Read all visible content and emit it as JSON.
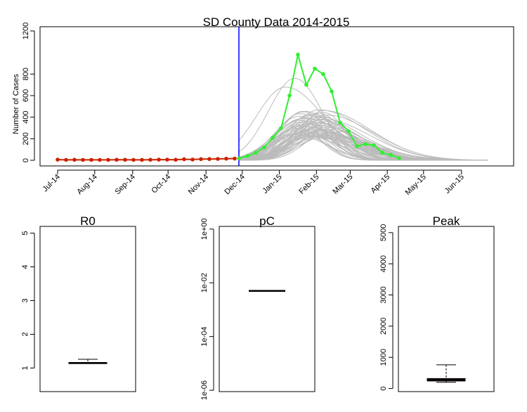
{
  "chart_data": [
    {
      "type": "line",
      "title": "SD County Data 2014-2015",
      "ylabel": "Number of Cases",
      "xlabel": "",
      "ylim": [
        0,
        1200
      ],
      "yticks": [
        0,
        200,
        400,
        600,
        800,
        1200
      ],
      "xlim": [
        -1,
        52
      ],
      "xticks": [
        {
          "x": 0,
          "label": "Jul-14"
        },
        {
          "x": 4.4,
          "label": "Aug-14"
        },
        {
          "x": 8.9,
          "label": "Sep-14"
        },
        {
          "x": 13.1,
          "label": "Oct-14"
        },
        {
          "x": 17.6,
          "label": "Nov-14"
        },
        {
          "x": 21.9,
          "label": "Dec-14"
        },
        {
          "x": 26.3,
          "label": "Jan-15"
        },
        {
          "x": 30.7,
          "label": "Feb-15"
        },
        {
          "x": 34.7,
          "label": "Mar-15"
        },
        {
          "x": 39.1,
          "label": "Apr-15"
        },
        {
          "x": 43.4,
          "label": "May-15"
        },
        {
          "x": 47.9,
          "label": "Jun-15"
        }
      ],
      "vline_x": 21.5,
      "vline_color": "#0000ff",
      "series": [
        {
          "color": "#cc2200",
          "x": [
            0,
            1,
            2,
            3,
            4,
            5,
            6,
            7,
            8,
            9,
            10,
            11,
            12,
            13,
            14,
            15,
            16,
            17,
            18,
            19,
            20,
            21
          ],
          "values": [
            6,
            4,
            5,
            4,
            4,
            4,
            4,
            5,
            5,
            4,
            4,
            5,
            6,
            6,
            5,
            10,
            7,
            11,
            12,
            13,
            15,
            16
          ]
        },
        {
          "color": "#33ee33",
          "x": [
            21.5,
            22.5,
            23.5,
            24.5,
            25.5,
            26.5,
            27.5,
            28.5,
            29.5,
            30.5,
            31.5,
            32.5,
            33.5,
            34.5,
            35.5,
            36.5,
            37.5,
            38.5,
            39.5,
            40.5
          ],
          "values": [
            18,
            40,
            70,
            120,
            210,
            300,
            600,
            980,
            700,
            850,
            800,
            640,
            350,
            270,
            130,
            150,
            140,
            70,
            50,
            20
          ]
        }
      ],
      "simulations_color": "#bbbbbb"
    },
    {
      "type": "boxplot",
      "title": "R0",
      "ylim": [
        0.3,
        5.2
      ],
      "yticks": [
        1,
        2,
        3,
        4,
        5
      ],
      "box": {
        "min": 1.12,
        "q1": 1.13,
        "median": 1.15,
        "q3": 1.16,
        "max": 1.26
      }
    },
    {
      "type": "boxplot",
      "title": "pC",
      "scale": "log",
      "ylim_exp": [
        -6.05,
        0.1
      ],
      "yticks": [
        {
          "exp": 0,
          "label": "1e+00"
        },
        {
          "exp": -2,
          "label": "1e-02"
        },
        {
          "exp": -4,
          "label": "1e-04"
        },
        {
          "exp": -6,
          "label": "1e-06"
        }
      ],
      "box": {
        "median_exp": -2.3
      }
    },
    {
      "type": "boxplot",
      "title": "Peak",
      "ylim": [
        -100,
        5200
      ],
      "yticks": [
        0,
        1000,
        2000,
        3000,
        4000,
        5000
      ],
      "box": {
        "min": 200,
        "q1": 240,
        "median": 280,
        "q3": 320,
        "max": 760
      },
      "box_fill": "#7a1f6e"
    }
  ]
}
